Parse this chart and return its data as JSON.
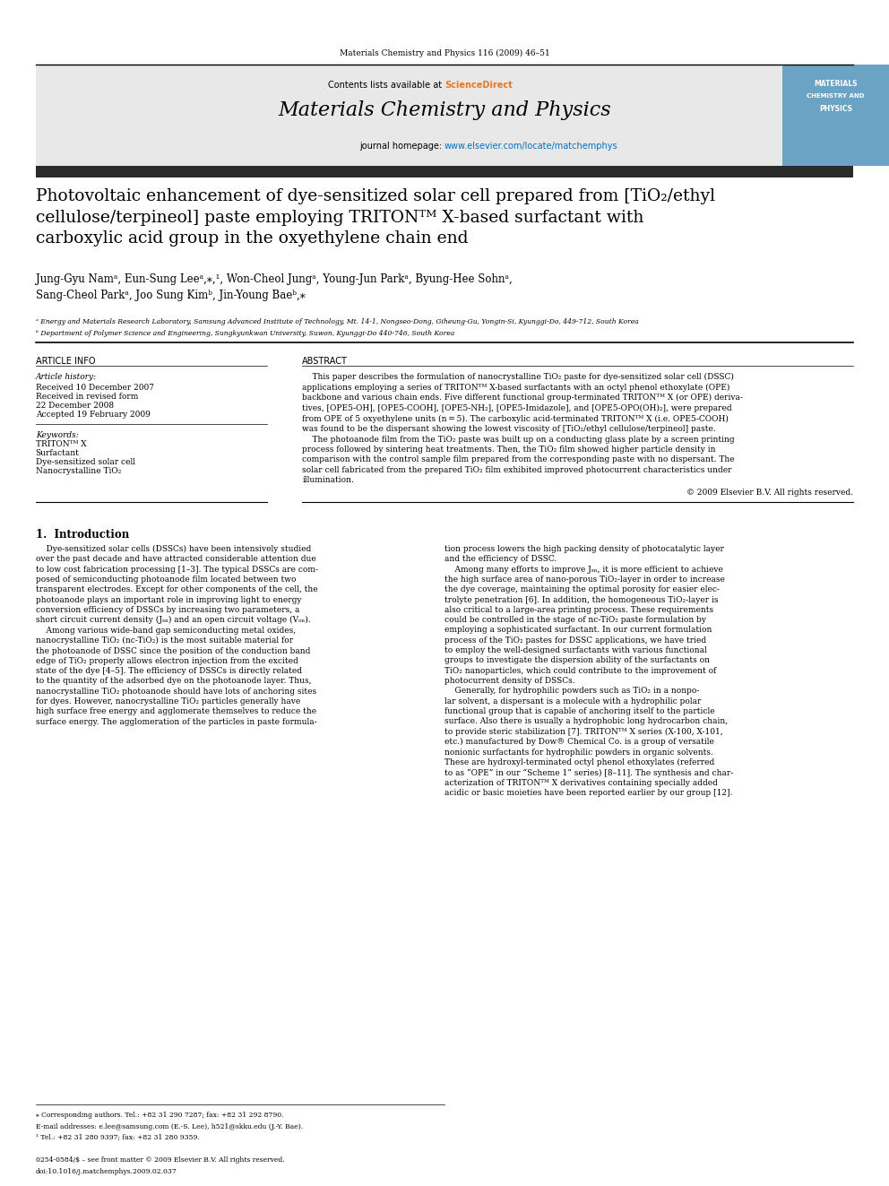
{
  "page_width": 9.92,
  "page_height": 13.23,
  "bg_color": "#ffffff",
  "journal_ref": "Materials Chemistry and Physics 116 (2009) 46–51",
  "contents_line": "Contents lists available at ScienceDirect",
  "journal_name": "Materials Chemistry and Physics",
  "journal_url": "journal homepage: www.elsevier.com/locate/matchemphys",
  "header_bg": "#e8e8e8",
  "header_bar_color": "#2b2b2b",
  "sciencedirect_color": "#e87722",
  "url_color": "#0070c0",
  "paper_title": "Photovoltaic enhancement of dye-sensitized solar cell prepared from [TiO₂/ethyl\ncellulose/terpineol] paste employing TRITONᵀᴹ X-based surfactant with\ncarboxylic acid group in the oxyethylene chain end",
  "authors": "Jung-Gyu Namᵃ, Eun-Sung Leeᵃ,⁎,¹, Won-Cheol Jungᵃ, Young-Jun Parkᵃ, Byung-Hee Sohnᵃ,\nSang-Cheol Parkᵃ, Joo Sung Kimᵇ, Jin-Young Baeᵇ,⁎",
  "affil_a": "ᵃ Energy and Materials Research Laboratory, Samsung Advanced Institute of Technology, Mt. 14-1, Nongseo-Dong, Giheung-Gu, Yongin-Si, Kyunggi-Do, 449-712, South Korea",
  "affil_b": "ᵇ Department of Polymer Science and Engineering, Sungkyunkwan University, Suwon, Kyunggi-Do 440-746, South Korea",
  "article_info_title": "ARTICLE INFO",
  "abstract_title": "ABSTRACT",
  "article_history_label": "Article history:",
  "received1": "Received 10 December 2007",
  "received2": "Received in revised form",
  "received2b": "22 December 2008",
  "accepted": "Accepted 19 February 2009",
  "keywords_label": "Keywords:",
  "keyword1": "TRITONᵀᴹ X",
  "keyword2": "Surfactant",
  "keyword3": "Dye-sensitized solar cell",
  "keyword4": "Nanocrystalline TiO₂",
  "abstract_text1": "This paper describes the formulation of nanocrystalline TiO₂ paste for dye-sensitized solar cell (DSSC) applications employing a series of TRITONᵀᴹ X-based surfactants with an octyl phenol ethoxylate (OPE) backbone and various chain ends. Five different functional group-terminated TRITONᵀᴹ X (or OPE) derivatives, [OPE5-OH], [OPE5-COOH], [OPE5-NH₂], [OPE5-Imidazole], and [OPE5-OPO(OH)₂], were prepared from OPE of 5 oxyethylene units (n = 5). The carboxylic acid-terminated TRITONᵀᴹ X (i.e. OPE5-COOH) was found to be the dispersant showing the lowest viscosity of [TiO₂/ethyl cellulose/terpineol] paste.",
  "abstract_text2": "The photoanode film from the TiO₂ paste was built up on a conducting glass plate by a screen printing process followed by sintering heat treatments. Then, the TiO₂ film showed higher particle density in comparison with the control sample film prepared from the corresponding paste with no dispersant. The solar cell fabricated from the prepared TiO₂ film exhibited improved photocurrent characteristics under illumination.",
  "copyright": "© 2009 Elsevier B.V. All rights reserved.",
  "intro_title": "1.  Introduction",
  "intro_col1": "Dye-sensitized solar cells (DSSCs) have been intensively studied over the past decade and have attracted considerable attention due to low cost fabrication processing [1–3]. The typical DSSCs are composed of semiconducting photoanode film located between two transparent electrodes. Except for other components of the cell, the photoanode plays an important role in improving light to energy conversion efficiency of DSSCs by increasing two parameters, a short circuit current density (Jₛₙ) and an open circuit voltage (Vₒₙ).\n    Among various wide-band gap semiconducting metal oxides, nanocrystalline TiO₂ (nc-TiO₂) is the most suitable material for the photoanode of DSSC since the position of the conduction band edge of TiO₂ properly allows electron injection from the excited state of the dye [4–5]. The efficiency of DSSCs is directly related to the quantity of the adsorbed dye on the photoanode layer. Thus, nanocrystalline TiO₂ photoanode should have lots of anchoring sites for dyes. However, nanocrystalline TiO₂ particles generally have high surface free energy and agglomerate themselves to reduce the surface energy. The agglomeration of the particles in paste formula-",
  "intro_col2": "tion process lowers the high packing density of photocatalytic layer and the efficiency of DSSC.\n    Among many efforts to improve Jₛₙ, it is more efficient to achieve the high surface area of nano-porous TiO₂-layer in order to increase the dye coverage, maintaining the optimal porosity for easier electrolyte penetration [6]. In addition, the homogeneous TiO₂-layer is also critical to a large-area printing process. These requirements could be controlled in the stage of nc-TiO₂ paste formulation by employing a sophisticated surfactant. In our current formulation process of the TiO₂ pastes for DSSC applications, we have tried to employ the well-designed surfactants with various functional groups to investigate the dispersion ability of the surfactants on TiO₂ nanoparticles, which could contribute to the improvement of photocurrent density of DSSCs.\n    Generally, for hydrophilic powders such as TiO₂ in a nonpolar solvent, a dispersant is a molecule with a hydrophilic polar functional group that is capable of anchoring itself to the particle surface. Also there is usually a hydrophobic long hydrocarbon chain, to provide steric stabilization [7]. TRITONᵀᴹ X series (X-100, X-101, etc.) manufactured by Dow® Chemical Co. is a group of versatile nonionic surfactants for hydrophilic powders in organic solvents. These are hydroxyl-terminated octyl phenol ethoxylates (referred to as “OPE” in our “Scheme 1” series) [8–11]. The synthesis and characterization of TRITONᵀᴹ X derivatives containing specially added acidic or basic moieties have been reported earlier by our group [12].",
  "footnote_star": "⁎ Corresponding authors. Tel.: +82 31 290 7287; fax: +82 31 292 8790.",
  "footnote_email": "E-mail addresses: e.lee@samsung.com (E.-S. Lee), h521@skku.edu (J.-Y. Bae).",
  "footnote_1": "¹ Tel.: +82 31 280 9397; fax: +82 31 280 9359.",
  "issn_line": "0254-0584/$ – see front matter © 2009 Elsevier B.V. All rights reserved.",
  "doi_line": "doi:10.1016/j.matchemphys.2009.02.037"
}
